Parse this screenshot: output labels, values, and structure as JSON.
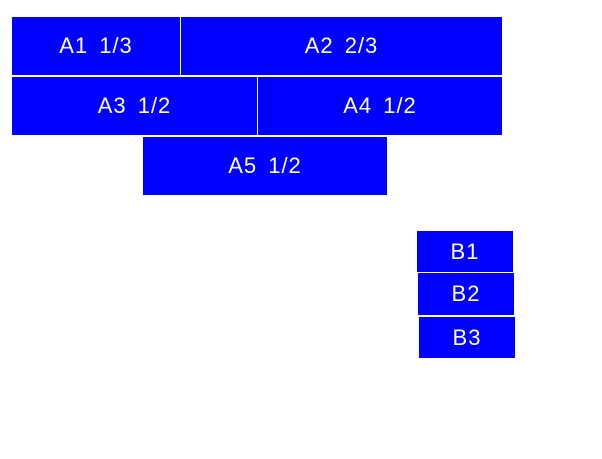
{
  "colors": {
    "box": "#0000ff",
    "text": "#ffffff"
  },
  "group_a": [
    {
      "label": "A1 1/3"
    },
    {
      "label": "A2 2/3"
    },
    {
      "label": "A3 1/2"
    },
    {
      "label": "A4 1/2"
    },
    {
      "label": "A5 1/2"
    }
  ],
  "group_b": [
    {
      "label": "B1"
    },
    {
      "label": "B2"
    },
    {
      "label": "B3"
    }
  ]
}
